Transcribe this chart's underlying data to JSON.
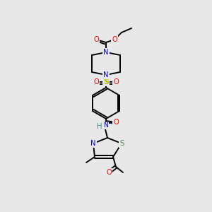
{
  "bg_color": "#e8e8e8",
  "atom_colors": {
    "C": "#000000",
    "N": "#0000ee",
    "O": "#ee0000",
    "S_yellow": "#bbbb00",
    "S_gray": "#448844",
    "H": "#448888"
  },
  "figsize": [
    3.0,
    3.0
  ],
  "dpi": 100,
  "lw": 1.4,
  "fs": 7.2
}
